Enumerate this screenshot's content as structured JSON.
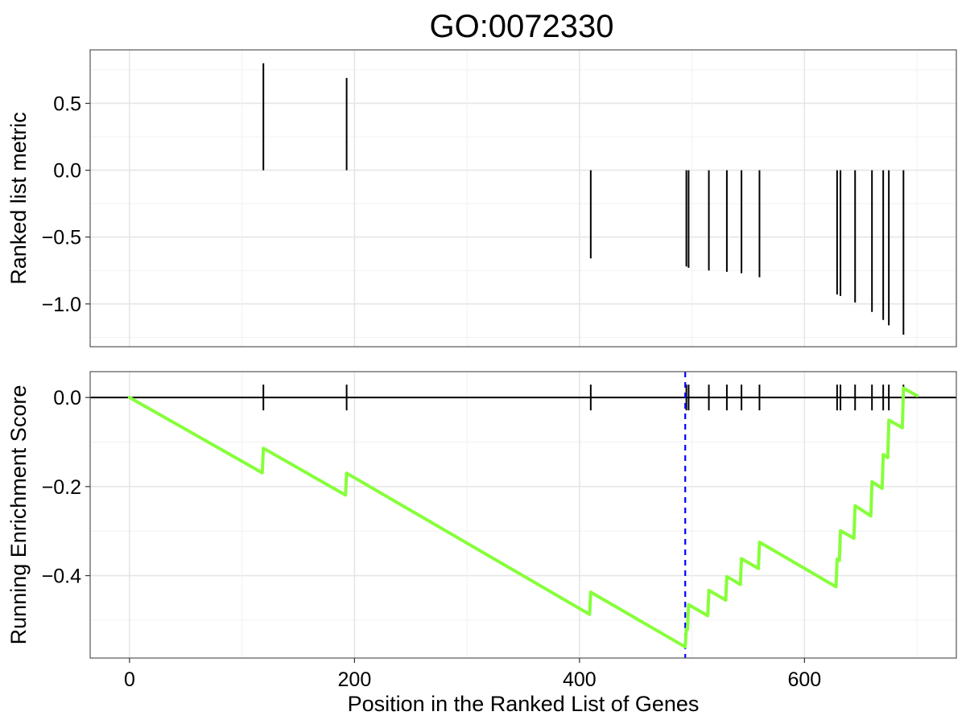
{
  "chart_data": {
    "type": "line",
    "title": "GO:0072330",
    "xlabel": "Position in the Ranked List of Genes",
    "xlim": [
      -35,
      735
    ],
    "x_ticks": [
      0,
      200,
      400,
      600
    ],
    "x_tick_labels": [
      "0",
      "200",
      "400",
      "600"
    ],
    "top_panel": {
      "type": "bar",
      "ylabel": "Ranked list metric",
      "ylim": [
        -1.32,
        0.9
      ],
      "y_ticks": [
        0.5,
        0.0,
        -0.5,
        -1.0
      ],
      "y_tick_labels": [
        "0.5",
        "0.0",
        "−0.5",
        "−1.0"
      ],
      "x": [
        119,
        193,
        410,
        495,
        497,
        515,
        531,
        544,
        560,
        629,
        632,
        645,
        660,
        670,
        675,
        688
      ],
      "values": [
        0.8,
        0.69,
        -0.66,
        -0.72,
        -0.73,
        -0.75,
        -0.76,
        -0.77,
        -0.8,
        -0.93,
        -0.94,
        -0.99,
        -1.06,
        -1.12,
        -1.16,
        -1.23
      ]
    },
    "bottom_panel": {
      "type": "line",
      "ylabel": "Running Enrichment Score",
      "ylim": [
        -0.585,
        0.058
      ],
      "y_ticks": [
        0.0,
        -0.2,
        -0.4
      ],
      "y_tick_labels": [
        "0.0",
        "−0.2",
        "−0.4"
      ],
      "line_color": "#86FF3A",
      "marker_line_color": "#0000FF",
      "peak_position": 494,
      "hit_positions": [
        119,
        193,
        410,
        495,
        497,
        515,
        531,
        544,
        560,
        629,
        632,
        645,
        660,
        670,
        675,
        688
      ],
      "series": [
        {
          "x": [
            0,
            118,
            119,
            192,
            193,
            409,
            410,
            494,
            495,
            496,
            497,
            514,
            515,
            530,
            531,
            543,
            544,
            559,
            560,
            628,
            629,
            631,
            632,
            644,
            645,
            659,
            660,
            669,
            670,
            674,
            675,
            687,
            688,
            700
          ],
          "values": [
            0,
            -0.169,
            -0.114,
            -0.219,
            -0.17,
            -0.487,
            -0.437,
            -0.56,
            -0.52,
            -0.521,
            -0.465,
            -0.49,
            -0.433,
            -0.455,
            -0.402,
            -0.42,
            -0.362,
            -0.384,
            -0.325,
            -0.425,
            -0.363,
            -0.366,
            -0.299,
            -0.316,
            -0.243,
            -0.266,
            -0.189,
            -0.204,
            -0.128,
            -0.135,
            -0.051,
            -0.068,
            0.021,
            0.004
          ]
        }
      ]
    }
  }
}
